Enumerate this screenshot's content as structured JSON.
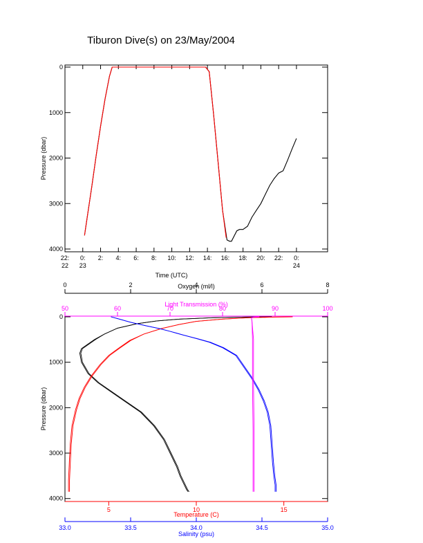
{
  "page": {
    "title": "Tiburon Dive(s) on 23/May/2004"
  },
  "chart_data": [
    {
      "type": "line",
      "title": "Tiburon Dive(s) on 23/May/2004",
      "xlabel": "Time (UTC)",
      "ylabel": "Pressure (dbar)",
      "x_units": "hours since 22:00 UTC on 22 May 2004",
      "xlim": [
        22,
        51.5
      ],
      "ylim": [
        4000,
        0
      ],
      "y_reversed": true,
      "x_ticks": [
        {
          "value": 22,
          "label": "22:",
          "sublabel": "22"
        },
        {
          "value": 24,
          "label": "0:",
          "sublabel": "23"
        },
        {
          "value": 26,
          "label": "2:",
          "sublabel": ""
        },
        {
          "value": 28,
          "label": "4:",
          "sublabel": ""
        },
        {
          "value": 30,
          "label": "6:",
          "sublabel": ""
        },
        {
          "value": 32,
          "label": "8:",
          "sublabel": ""
        },
        {
          "value": 34,
          "label": "10:",
          "sublabel": ""
        },
        {
          "value": 36,
          "label": "12:",
          "sublabel": ""
        },
        {
          "value": 38,
          "label": "14:",
          "sublabel": ""
        },
        {
          "value": 40,
          "label": "16:",
          "sublabel": ""
        },
        {
          "value": 42,
          "label": "18:",
          "sublabel": ""
        },
        {
          "value": 44,
          "label": "20:",
          "sublabel": ""
        },
        {
          "value": 46,
          "label": "22:",
          "sublabel": ""
        },
        {
          "value": 48,
          "label": "0:",
          "sublabel": "24"
        }
      ],
      "y_ticks": [
        0,
        1000,
        2000,
        3000,
        4000
      ],
      "series": [
        {
          "name": "",
          "color": "#000000",
          "x": [
            24.2,
            24.5,
            25.0,
            25.5,
            26.0,
            26.5,
            27.0,
            27.3,
            37.8,
            38.2,
            38.7,
            39.2,
            39.7,
            40.2,
            40.5,
            40.7,
            41.3,
            41.6,
            42.0,
            42.5,
            43.0,
            43.5,
            44.0,
            44.5,
            45.0,
            45.5,
            46.0,
            46.5,
            47.0,
            47.5,
            48.0
          ],
          "y": [
            3700,
            3300,
            2650,
            1950,
            1300,
            700,
            200,
            0,
            0,
            100,
            1050,
            2100,
            3150,
            3800,
            3830,
            3830,
            3600,
            3570,
            3570,
            3500,
            3300,
            3150,
            3000,
            2800,
            2600,
            2450,
            2330,
            2280,
            2050,
            1800,
            1570
          ]
        },
        {
          "name": "",
          "color": "#ff0000",
          "x": [
            24.2,
            24.5,
            25.0,
            25.5,
            26.0,
            26.5,
            27.0,
            27.3,
            37.8,
            38.2,
            38.7,
            39.2,
            39.7,
            40.1
          ],
          "y": [
            3700,
            3300,
            2650,
            1950,
            1300,
            700,
            200,
            0,
            0,
            100,
            1050,
            2100,
            3150,
            3750
          ]
        }
      ]
    },
    {
      "type": "line",
      "ylabel": "Pressure (dbar)",
      "ylim": [
        4050,
        0
      ],
      "y_reversed": true,
      "y_ticks": [
        0,
        1000,
        2000,
        3000,
        4000
      ],
      "axes": {
        "oxygen": {
          "label": "Oxygen (ml/l)",
          "range": [
            0,
            8
          ],
          "ticks": [
            0,
            2,
            4,
            6,
            8
          ],
          "color": "#000000",
          "position": "top-outer"
        },
        "light": {
          "label": "Light Transmission (%)",
          "range": [
            50,
            100
          ],
          "ticks": [
            50,
            60,
            70,
            80,
            90,
            100
          ],
          "color": "#ff00ff",
          "position": "top-inner"
        },
        "temperature": {
          "label": "Temperature (C)",
          "range": [
            2.5,
            17.5
          ],
          "ticks": [
            5,
            10,
            15
          ],
          "color": "#ff0000",
          "position": "bottom-inner"
        },
        "salinity": {
          "label": "Salinity (psu)",
          "range": [
            33.0,
            35.0
          ],
          "ticks": [
            "33.0",
            "33.5",
            "34.0",
            "34.5",
            "35.0"
          ],
          "color": "#0000ff",
          "position": "bottom-outer"
        }
      },
      "series": [
        {
          "name": "",
          "axis": "oxygen",
          "color": "#000000",
          "x": [
            6.3,
            5.5,
            4.5,
            3.5,
            2.8,
            2.2,
            1.6,
            1.2,
            0.9,
            0.7,
            0.5,
            0.45,
            0.5,
            0.7,
            1.0,
            1.4,
            1.8,
            2.3,
            2.7,
            3.0,
            3.2,
            3.4,
            3.5,
            3.6,
            3.7,
            3.75
          ],
          "y": [
            0,
            5,
            20,
            50,
            90,
            150,
            250,
            380,
            500,
            600,
            700,
            800,
            1000,
            1250,
            1450,
            1650,
            1850,
            2100,
            2400,
            2700,
            3000,
            3300,
            3500,
            3650,
            3800,
            3850
          ]
        },
        {
          "name": "",
          "axis": "temperature",
          "color": "#ff0000",
          "x": [
            15.5,
            14.5,
            13.0,
            11.5,
            10.0,
            9.0,
            8.0,
            7.0,
            6.2,
            5.6,
            5.0,
            4.5,
            4.0,
            3.6,
            3.3,
            3.1,
            2.9,
            2.8,
            2.75,
            2.7,
            2.7
          ],
          "y": [
            0,
            5,
            20,
            50,
            100,
            170,
            260,
            380,
            520,
            680,
            850,
            1050,
            1300,
            1550,
            1800,
            2050,
            2400,
            2800,
            3200,
            3600,
            3850
          ]
        },
        {
          "name": "",
          "axis": "salinity",
          "color": "#0000ff",
          "x": [
            33.35,
            33.4,
            33.5,
            33.62,
            33.72,
            33.8,
            33.9,
            34.0,
            34.1,
            34.2,
            34.3,
            34.36,
            34.42,
            34.47,
            34.51,
            34.54,
            34.56,
            34.57,
            34.58,
            34.59,
            34.6,
            34.6
          ],
          "y": [
            0,
            40,
            120,
            200,
            260,
            320,
            400,
            480,
            560,
            680,
            850,
            1100,
            1350,
            1600,
            1850,
            2100,
            2400,
            2800,
            3200,
            3500,
            3700,
            3850
          ]
        },
        {
          "name": "",
          "axis": "light",
          "color": "#ff00ff",
          "x": [
            87.0,
            86.0,
            85.5,
            85.6,
            85.7,
            85.7,
            85.8,
            85.8,
            85.8
          ],
          "y": [
            0,
            5,
            20,
            100,
            500,
            1500,
            2500,
            3500,
            3850
          ]
        }
      ]
    }
  ]
}
